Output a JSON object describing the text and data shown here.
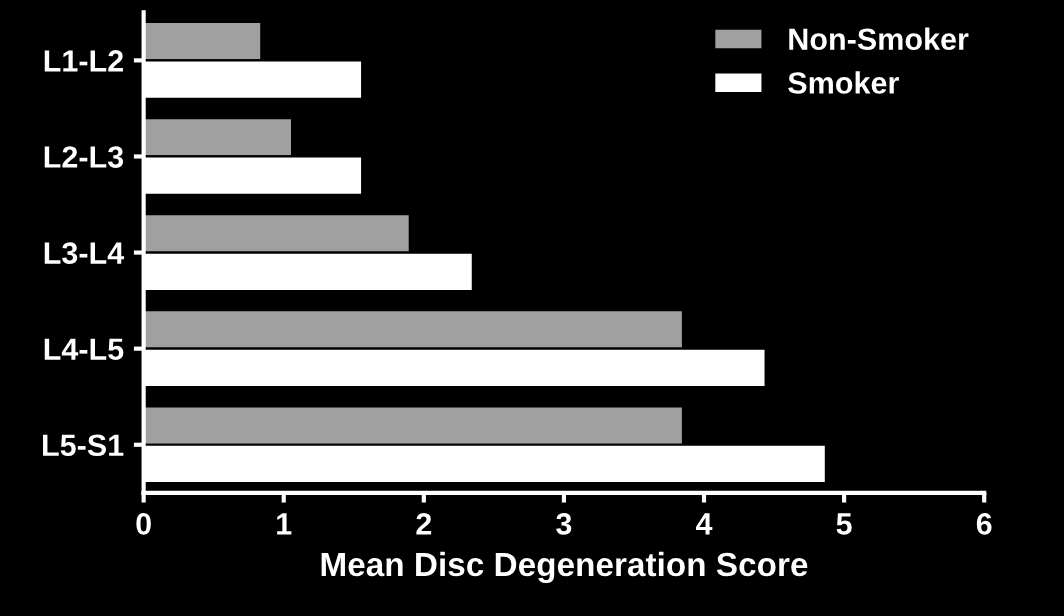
{
  "chart_data": {
    "type": "bar",
    "orientation": "horizontal",
    "xlabel": "Mean Disc Degeneration Score",
    "categories": [
      "L1-L2",
      "L2-L3",
      "L3-L4",
      "L4-L5",
      "L5-S1"
    ],
    "series": [
      {
        "name": "Non-Smoker",
        "color": "#a0a0a0",
        "values": [
          0.84,
          1.06,
          1.9,
          3.85,
          3.85
        ]
      },
      {
        "name": "Smoker",
        "color": "#ffffff",
        "values": [
          1.56,
          1.56,
          2.35,
          4.44,
          4.87
        ]
      }
    ],
    "xlim": [
      0,
      6
    ],
    "xticks": [
      0,
      1,
      2,
      3,
      4,
      5,
      6
    ],
    "grid": false,
    "legend": "top right"
  }
}
